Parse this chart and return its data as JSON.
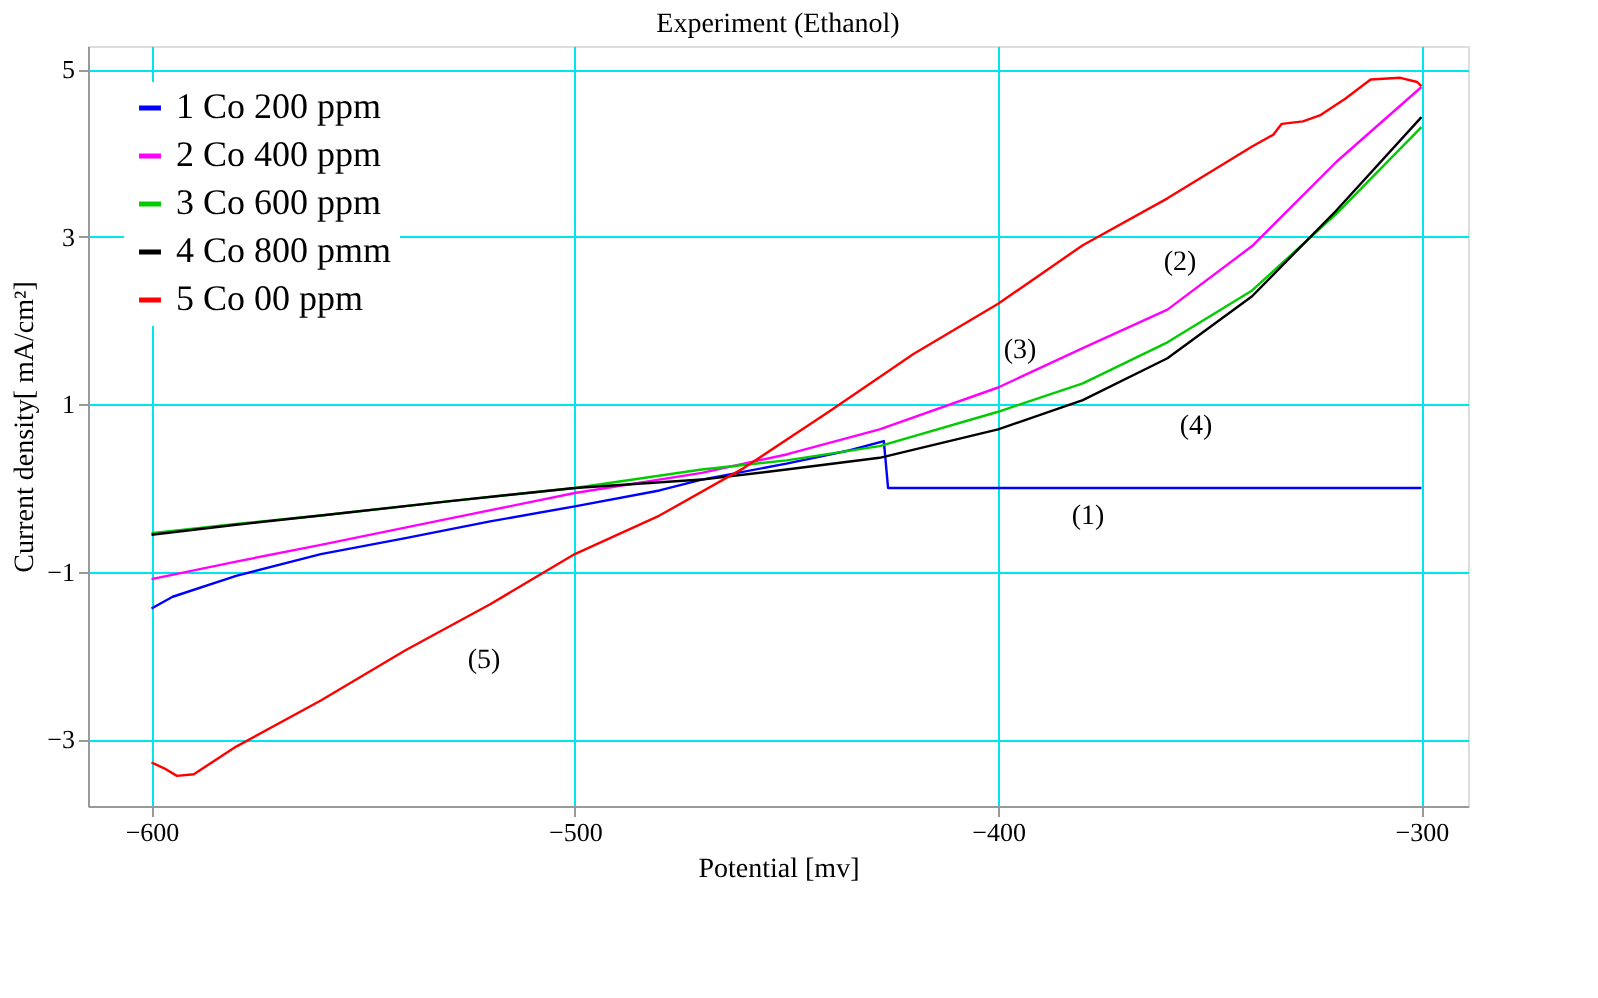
{
  "chart_data": {
    "type": "line",
    "title": "Experiment (Ethanol)",
    "xlabel": "Potential [mv]",
    "ylabel": "Current density[ mA/cm²]",
    "xlim": [
      -615,
      -289
    ],
    "ylim": [
      -3.8,
      5.28
    ],
    "xticks": [
      -600,
      -500,
      -400,
      -300
    ],
    "yticks": [
      -3,
      -1,
      1,
      3,
      5
    ],
    "grid": true,
    "legend": "top left",
    "marker": "none",
    "line_style": "solid",
    "series": [
      {
        "name": "1 Co 200 ppm",
        "color": "#0000ff",
        "x": [
          -600,
          -595,
          -580,
          -560,
          -540,
          -520,
          -500,
          -480,
          -470,
          -450,
          -435,
          -427,
          -426,
          -300
        ],
        "values": [
          -1.44,
          -1.3,
          -1.05,
          -0.79,
          -0.6,
          -0.4,
          -0.22,
          -0.03,
          0.1,
          0.29,
          0.45,
          0.56,
          0.0,
          0.0
        ]
      },
      {
        "name": "2 Co 400 ppm",
        "color": "#ff00ff",
        "x": [
          -600,
          -580,
          -560,
          -530,
          -500,
          -470,
          -450,
          -428,
          -400,
          -380,
          -360,
          -340,
          -320,
          -300
        ],
        "values": [
          -1.09,
          -0.88,
          -0.68,
          -0.37,
          -0.06,
          0.18,
          0.4,
          0.7,
          1.2,
          1.67,
          2.13,
          2.89,
          3.9,
          4.79
        ]
      },
      {
        "name": "3 Co 600 ppm",
        "color": "#00cc00",
        "x": [
          -600,
          -580,
          -560,
          -530,
          -500,
          -470,
          -450,
          -428,
          -400,
          -380,
          -360,
          -340,
          -320,
          -300
        ],
        "values": [
          -0.54,
          -0.43,
          -0.33,
          -0.16,
          0.0,
          0.22,
          0.33,
          0.5,
          0.91,
          1.25,
          1.74,
          2.36,
          3.28,
          4.31
        ]
      },
      {
        "name": "4 Co 800 pmm",
        "color": "#000000",
        "x": [
          -600,
          -580,
          -560,
          -530,
          -500,
          -470,
          -450,
          -428,
          -400,
          -380,
          -360,
          -340,
          -320,
          -300
        ],
        "values": [
          -0.56,
          -0.44,
          -0.33,
          -0.16,
          0.0,
          0.1,
          0.22,
          0.36,
          0.7,
          1.05,
          1.55,
          2.29,
          3.32,
          4.43
        ]
      },
      {
        "name": "5 Co 00   ppm",
        "color": "#ff0000",
        "x": [
          -600,
          -597,
          -594,
          -590,
          -580,
          -560,
          -540,
          -520,
          -500,
          -480,
          -460,
          -440,
          -420,
          -400,
          -380,
          -360,
          -340,
          -335,
          -333,
          -328,
          -324,
          -318,
          -312,
          -305,
          -301,
          -300
        ],
        "values": [
          -3.28,
          -3.35,
          -3.44,
          -3.42,
          -3.09,
          -2.54,
          -1.94,
          -1.39,
          -0.79,
          -0.33,
          0.24,
          0.91,
          1.6,
          2.2,
          2.9,
          3.46,
          4.08,
          4.22,
          4.35,
          4.38,
          4.45,
          4.65,
          4.88,
          4.9,
          4.85,
          4.8
        ]
      }
    ],
    "annotations": [
      "(1)",
      "(2)",
      "(3)",
      "(4)",
      "(5)"
    ]
  }
}
